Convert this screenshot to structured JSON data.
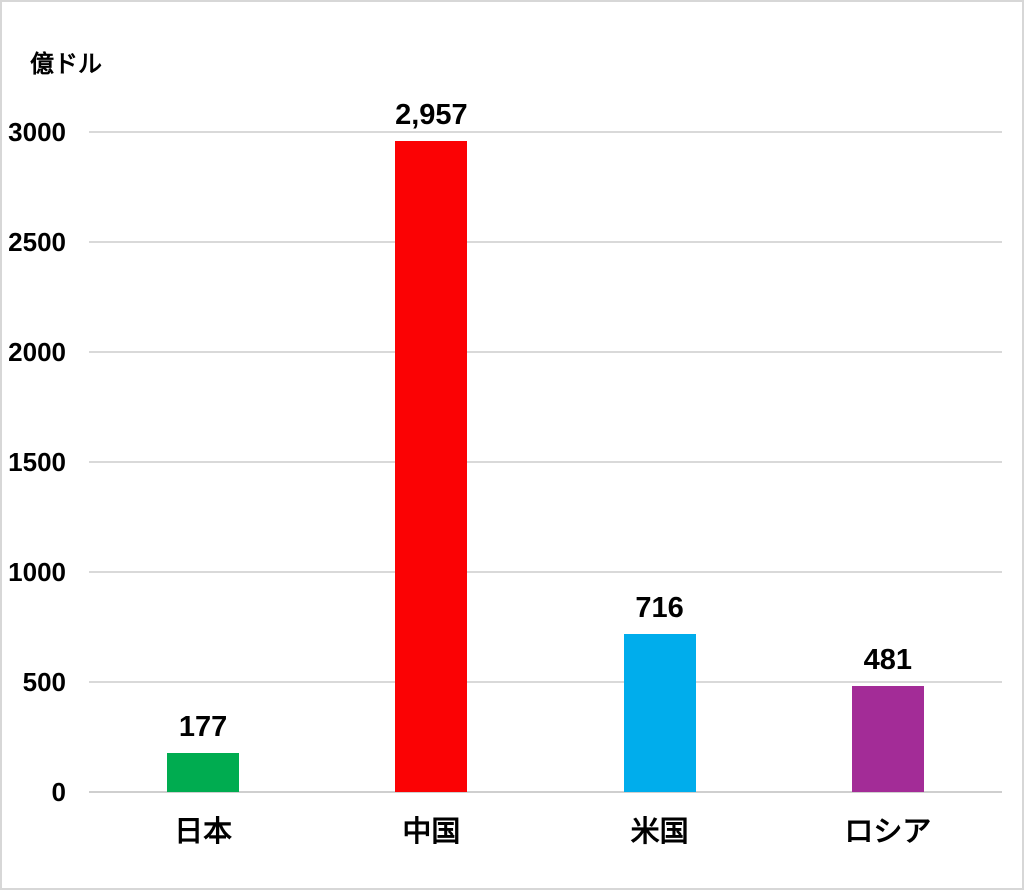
{
  "chart_data": {
    "type": "bar",
    "title": "",
    "ylabel": "億ドル",
    "xlabel": "",
    "categories": [
      "日本",
      "中国",
      "米国",
      "ロシア"
    ],
    "values": [
      177,
      2957,
      716,
      481
    ],
    "value_labels": [
      "177",
      "2,957",
      "716",
      "481"
    ],
    "bar_colors": [
      "#00ac50",
      "#fb0204",
      "#00adec",
      "#a32c97"
    ],
    "ylim": [
      0,
      3000
    ],
    "yticks": [
      0,
      500,
      1000,
      1500,
      2000,
      2500,
      3000
    ],
    "grid": "horizontal",
    "legend": "none",
    "gridline_color": "#d9d9d9",
    "axis_line_color": "#cfcfcf",
    "text_color": "#000000",
    "background_color": "#ffffff"
  }
}
